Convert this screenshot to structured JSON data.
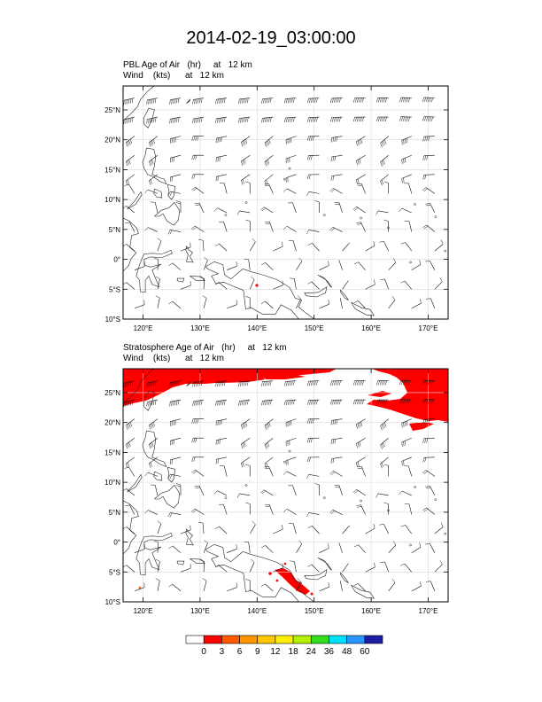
{
  "title": "2014-02-19_03:00:00",
  "panels": [
    {
      "id": "pbl",
      "title_line1": "PBL Age of Air   (hr)     at   12 km",
      "title_line2": "Wind    (kts)      at   12 km"
    },
    {
      "id": "strat",
      "title_line1": "Stratosphere Age of Air   (hr)     at   12 km",
      "title_line2": "Wind    (kts)      at   12 km"
    }
  ],
  "axes": {
    "x_range": [
      116.5,
      173.5
    ],
    "y_range": [
      -10,
      29
    ],
    "x_ticks": [
      {
        "value": 120,
        "label": "120°E"
      },
      {
        "value": 130,
        "label": "130°E"
      },
      {
        "value": 140,
        "label": "140°E"
      },
      {
        "value": 150,
        "label": "150°E"
      },
      {
        "value": 160,
        "label": "160°E"
      },
      {
        "value": 170,
        "label": "170°E"
      }
    ],
    "y_ticks": [
      {
        "value": 25,
        "label": "25°N"
      },
      {
        "value": 20,
        "label": "20°N"
      },
      {
        "value": 15,
        "label": "15°N"
      },
      {
        "value": 10,
        "label": "10°N"
      },
      {
        "value": 5,
        "label": "5°N"
      },
      {
        "value": 0,
        "label": "0°"
      },
      {
        "value": -5,
        "label": "5°S"
      },
      {
        "value": -10,
        "label": "10°S"
      }
    ],
    "grid": true
  },
  "colorbar": {
    "colors": [
      "#ffffff",
      "#ff0000",
      "#ff5a00",
      "#ff9600",
      "#ffc800",
      "#fff000",
      "#b4f000",
      "#32dc1e",
      "#00e1ff",
      "#2896ff",
      "#1e1ea0"
    ],
    "labels": [
      "0",
      "3",
      "6",
      "9",
      "12",
      "18",
      "24",
      "36",
      "48",
      "60"
    ]
  }
}
